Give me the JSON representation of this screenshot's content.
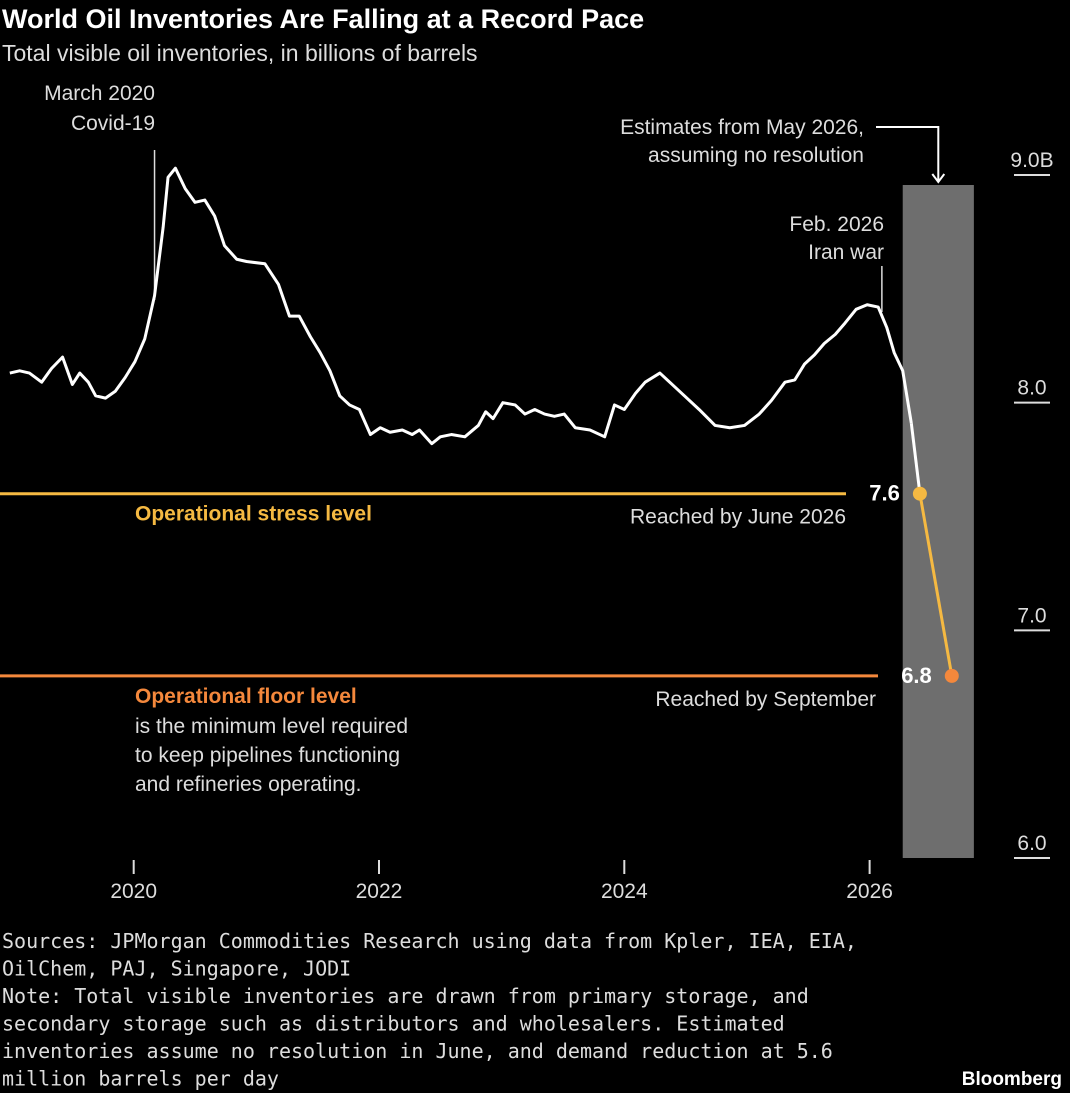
{
  "chart_data": {
    "type": "line",
    "title": "World Oil Inventories Are Falling at a Record Pace",
    "subtitle": "Total visible oil inventories, in billions of barrels",
    "color": "#ffffff",
    "x": [
      2018.99,
      2019.07,
      2019.15,
      2019.25,
      2019.33,
      2019.42,
      2019.5,
      2019.56,
      2019.63,
      2019.69,
      2019.77,
      2019.85,
      2019.93,
      2020.01,
      2020.09,
      2020.17,
      2020.24,
      2020.28,
      2020.34,
      2020.42,
      2020.5,
      2020.58,
      2020.66,
      2020.74,
      2020.84,
      2020.92,
      2021.07,
      2021.18,
      2021.27,
      2021.35,
      2021.44,
      2021.52,
      2021.6,
      2021.68,
      2021.76,
      2021.84,
      2021.93,
      2022.01,
      2022.09,
      2022.19,
      2022.27,
      2022.33,
      2022.43,
      2022.5,
      2022.59,
      2022.7,
      2022.81,
      2022.87,
      2022.93,
      2023.01,
      2023.11,
      2023.19,
      2023.27,
      2023.35,
      2023.43,
      2023.51,
      2023.6,
      2023.72,
      2023.84,
      2023.92,
      2024.0,
      2024.09,
      2024.17,
      2024.29,
      2024.39,
      2024.49,
      2024.61,
      2024.74,
      2024.86,
      2024.98,
      2025.1,
      2025.2,
      2025.31,
      2025.39,
      2025.47,
      2025.55,
      2025.63,
      2025.72,
      2025.8,
      2025.89,
      2025.98,
      2026.07,
      2026.14,
      2026.2,
      2026.27,
      2026.34
    ],
    "values": [
      8.13,
      8.14,
      8.13,
      8.09,
      8.15,
      8.2,
      8.08,
      8.13,
      8.09,
      8.03,
      8.02,
      8.05,
      8.11,
      8.18,
      8.28,
      8.47,
      8.77,
      8.99,
      9.03,
      8.94,
      8.88,
      8.89,
      8.82,
      8.69,
      8.63,
      8.62,
      8.61,
      8.52,
      8.38,
      8.38,
      8.29,
      8.22,
      8.14,
      8.03,
      7.99,
      7.97,
      7.86,
      7.89,
      7.87,
      7.88,
      7.86,
      7.88,
      7.82,
      7.85,
      7.86,
      7.85,
      7.9,
      7.96,
      7.93,
      8.0,
      7.99,
      7.95,
      7.97,
      7.95,
      7.94,
      7.95,
      7.89,
      7.88,
      7.85,
      7.99,
      7.97,
      8.04,
      8.09,
      8.13,
      8.08,
      8.03,
      7.97,
      7.9,
      7.89,
      7.9,
      7.95,
      8.01,
      8.09,
      8.1,
      8.17,
      8.21,
      8.26,
      8.3,
      8.35,
      8.41,
      8.43,
      8.42,
      8.33,
      8.22,
      8.14,
      7.91
    ],
    "estimates": {
      "x": [
        2026.41,
        2026.67
      ],
      "values": [
        7.6,
        6.8
      ],
      "value_labels": [
        "7.6",
        "6.8"
      ],
      "notes": [
        "Reached by June 2026",
        "Reached by September"
      ],
      "colors": [
        "#f5b942",
        "#f4883c"
      ]
    },
    "estimate_period": {
      "x": [
        2026.27,
        2026.85
      ],
      "color": "#6e6e6e",
      "lines": [
        "Estimates from May 2026,",
        "assuming no resolution"
      ]
    },
    "reference_lines": [
      {
        "value": 7.6,
        "label": "Operational stress level",
        "color": "#f5b942"
      },
      {
        "value": 6.8,
        "label": "Operational floor level",
        "color": "#f4883c",
        "description": [
          "is the minimum level required",
          "to keep pipelines functioning",
          "and refineries operating."
        ]
      }
    ],
    "annotations": [
      {
        "x": 2020.17,
        "lines": [
          "March 2020",
          "Covid-19"
        ]
      },
      {
        "x": 2026.1,
        "lines": [
          "Feb. 2026",
          "Iran war"
        ]
      }
    ],
    "xlim": [
      2018.91,
      2026.9
    ],
    "xticks": [
      2020,
      2022,
      2024,
      2026
    ],
    "ylim": [
      6,
      9
    ],
    "yticks": [
      {
        "value": 6,
        "label": "6.0"
      },
      {
        "value": 7,
        "label": "7.0"
      },
      {
        "value": 8,
        "label": "8.0"
      },
      {
        "value": 9,
        "label": "9.0B"
      }
    ],
    "footer_lines": [
      "Sources: JPMorgan Commodities Research using data from Kpler, IEA, EIA,",
      "OilChem, PAJ, Singapore, JODI",
      "Note: Total visible inventories are drawn from primary storage, and",
      "secondary storage such as distributors and wholesalers. Estimated",
      "inventories assume no resolution in June, and demand reduction at 5.6",
      "million barrels per day"
    ],
    "source": "Bloomberg"
  }
}
